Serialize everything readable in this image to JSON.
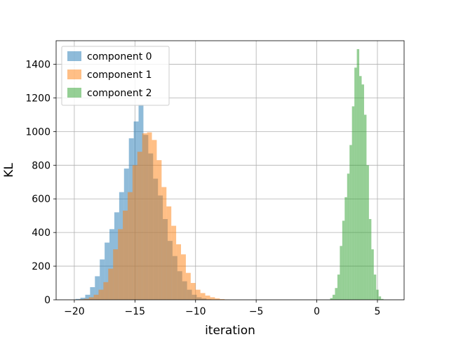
{
  "chart_data": {
    "type": "bar",
    "title": "",
    "xlabel": "iteration",
    "ylabel": "KL",
    "xlim": [
      -21.5,
      7.2
    ],
    "ylim": [
      0,
      1540
    ],
    "xticks": [
      -20,
      -15,
      -10,
      -5,
      0,
      5
    ],
    "xtick_labels": [
      "−20",
      "−15",
      "−10",
      "−5",
      "0",
      "5"
    ],
    "yticks": [
      0,
      200,
      400,
      600,
      800,
      1000,
      1200,
      1400
    ],
    "ytick_labels": [
      "0",
      "200",
      "400",
      "600",
      "800",
      "1000",
      "1200",
      "1400"
    ],
    "grid": true,
    "legend_position": "upper-left",
    "series": [
      {
        "name": "component 0",
        "color": "#1f77b4",
        "alpha": 0.5,
        "bin_start": -19.9,
        "bin_width": 0.4,
        "values": [
          5,
          12,
          30,
          75,
          140,
          240,
          340,
          420,
          520,
          640,
          780,
          960,
          1060,
          1160,
          980,
          870,
          720,
          620,
          480,
          350,
          260,
          170,
          110,
          60,
          30,
          15,
          8,
          3
        ]
      },
      {
        "name": "component 1",
        "color": "#ff7f0e",
        "alpha": 0.5,
        "bin_start": -19.6,
        "bin_width": 0.4,
        "values": [
          3,
          6,
          15,
          30,
          60,
          105,
          185,
          300,
          420,
          530,
          640,
          800,
          880,
          990,
          995,
          950,
          830,
          670,
          555,
          440,
          330,
          270,
          160,
          100,
          60,
          40,
          25,
          15,
          8,
          4,
          2
        ]
      },
      {
        "name": "component 2",
        "color": "#2ca02c",
        "alpha": 0.5,
        "bin_start": 1.1,
        "bin_width": 0.2,
        "values": [
          10,
          30,
          70,
          150,
          320,
          470,
          610,
          750,
          920,
          1150,
          1380,
          1490,
          1330,
          1280,
          1100,
          800,
          480,
          300,
          150,
          60,
          20,
          5
        ]
      }
    ]
  }
}
